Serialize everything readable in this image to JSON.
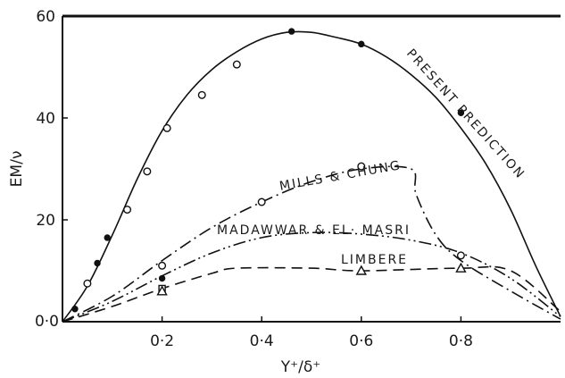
{
  "chart_data": {
    "type": "line",
    "title": "",
    "xlabel": "Y⁺/δ⁺",
    "ylabel": "EM/ν",
    "xlim": [
      0,
      1.0
    ],
    "ylim": [
      0,
      60
    ],
    "x_ticks": [
      {
        "value": 0.0,
        "label": "0·0"
      },
      {
        "value": 0.2,
        "label": "0·2"
      },
      {
        "value": 0.4,
        "label": "0·4"
      },
      {
        "value": 0.6,
        "label": "0·6"
      },
      {
        "value": 0.8,
        "label": "0·8"
      }
    ],
    "y_ticks": [
      {
        "value": 20,
        "label": "20"
      },
      {
        "value": 40,
        "label": "40"
      },
      {
        "value": 60,
        "label": "60"
      }
    ],
    "grid": false,
    "series": [
      {
        "name": "PRESENT PREDICTION",
        "style": "solid",
        "curve": [
          [
            0,
            0
          ],
          [
            0.05,
            7
          ],
          [
            0.1,
            17
          ],
          [
            0.15,
            28
          ],
          [
            0.2,
            37.5
          ],
          [
            0.25,
            44.5
          ],
          [
            0.3,
            49.5
          ],
          [
            0.35,
            53
          ],
          [
            0.4,
            55.5
          ],
          [
            0.45,
            56.8
          ],
          [
            0.5,
            56.8
          ],
          [
            0.55,
            55.8
          ],
          [
            0.6,
            54.5
          ],
          [
            0.65,
            52
          ],
          [
            0.7,
            48.5
          ],
          [
            0.75,
            44
          ],
          [
            0.8,
            38
          ],
          [
            0.85,
            31
          ],
          [
            0.9,
            22
          ],
          [
            0.95,
            11
          ],
          [
            1.0,
            1
          ]
        ],
        "points": [
          {
            "x": 0.025,
            "y": 2.5,
            "marker": "filled"
          },
          {
            "x": 0.05,
            "y": 7.5,
            "marker": "open"
          },
          {
            "x": 0.07,
            "y": 11.5,
            "marker": "filled"
          },
          {
            "x": 0.09,
            "y": 16.5,
            "marker": "filled"
          },
          {
            "x": 0.13,
            "y": 22,
            "marker": "open"
          },
          {
            "x": 0.17,
            "y": 29.5,
            "marker": "open"
          },
          {
            "x": 0.21,
            "y": 38,
            "marker": "open"
          },
          {
            "x": 0.28,
            "y": 44.5,
            "marker": "open"
          },
          {
            "x": 0.35,
            "y": 50.5,
            "marker": "open"
          },
          {
            "x": 0.46,
            "y": 57,
            "marker": "filled"
          },
          {
            "x": 0.6,
            "y": 54.5,
            "marker": "filled"
          },
          {
            "x": 0.8,
            "y": 41,
            "marker": "filled"
          }
        ]
      },
      {
        "name": "MILLS & CHUNG",
        "style": "dashdot",
        "curve": [
          [
            0,
            0
          ],
          [
            0.1,
            5
          ],
          [
            0.2,
            12
          ],
          [
            0.3,
            18.5
          ],
          [
            0.4,
            23.5
          ],
          [
            0.5,
            27.5
          ],
          [
            0.6,
            30
          ],
          [
            0.7,
            30
          ],
          [
            0.71,
            25
          ],
          [
            0.75,
            17
          ],
          [
            0.8,
            12
          ],
          [
            0.9,
            6
          ],
          [
            1.0,
            0.5
          ]
        ],
        "points": [
          {
            "x": 0.2,
            "y": 11,
            "marker": "open"
          },
          {
            "x": 0.4,
            "y": 23.5,
            "marker": "open"
          },
          {
            "x": 0.6,
            "y": 30.5,
            "marker": "open"
          },
          {
            "x": 0.8,
            "y": 13,
            "marker": "open"
          }
        ]
      },
      {
        "name": "MADAWWAR & EL-MASRI",
        "style": "dashdotdot",
        "curve": [
          [
            0,
            0
          ],
          [
            0.1,
            4
          ],
          [
            0.2,
            9
          ],
          [
            0.3,
            13.5
          ],
          [
            0.4,
            16.5
          ],
          [
            0.5,
            17.5
          ],
          [
            0.6,
            17.2
          ],
          [
            0.7,
            16
          ],
          [
            0.8,
            13.5
          ],
          [
            0.9,
            8.5
          ],
          [
            1.0,
            1
          ]
        ],
        "points": [
          {
            "x": 0.2,
            "y": 8.5,
            "marker": "filled"
          },
          {
            "x": 0.2,
            "y": 6.5,
            "marker": "open-square"
          }
        ]
      },
      {
        "name": "LIMBERE",
        "style": "dashed",
        "curve": [
          [
            0,
            0
          ],
          [
            0.1,
            3
          ],
          [
            0.2,
            6.5
          ],
          [
            0.3,
            9.5
          ],
          [
            0.35,
            10.5
          ],
          [
            0.5,
            10.5
          ],
          [
            0.6,
            10
          ],
          [
            0.8,
            10.5
          ],
          [
            0.9,
            10
          ],
          [
            1.0,
            2
          ]
        ],
        "points": [
          {
            "x": 0.2,
            "y": 6,
            "marker": "triangle"
          },
          {
            "x": 0.6,
            "y": 10,
            "marker": "triangle"
          },
          {
            "x": 0.8,
            "y": 10.5,
            "marker": "triangle"
          }
        ]
      }
    ],
    "annotations": [
      {
        "text": "PRESENT PREDICTION",
        "series": 0
      },
      {
        "text": "MILLS & CHUNG",
        "series": 1
      },
      {
        "text": "MADAWWAR & EL· MASRI",
        "series": 2
      },
      {
        "text": "LIMBERE",
        "series": 3
      }
    ]
  }
}
